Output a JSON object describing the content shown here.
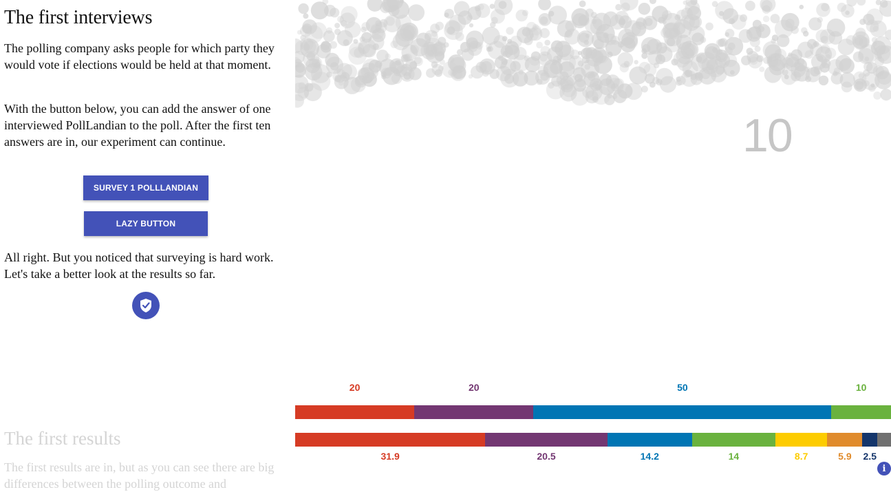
{
  "section1": {
    "title": "The first interviews",
    "para1": "The polling company asks people for which party they would vote if elections would be held at that moment.",
    "para2": "With the button below, you can add the answer of one interviewed PollLandian to the poll. After the first ten answers are in, our experiment can continue.",
    "survey_button": "SURVEY 1 POLLLANDIAN",
    "lazy_button": "LAZY BUTTON",
    "para3": "All right. But you noticed that surveying is hard work. Let's take a better look at the results so far.",
    "continue_icon": "shield-check-icon"
  },
  "section2": {
    "title": "The first results",
    "para1": "The first results are in, but as you can see there are big differences between the polling outcome and"
  },
  "visual": {
    "interview_count": "10",
    "dot_color": "#d0d0d0"
  },
  "chart_data": {
    "type": "bar",
    "orientation": "horizontal-stacked",
    "series": [
      {
        "name": "",
        "values": [
          20,
          20,
          50,
          10
        ],
        "colors": [
          "#d63b24",
          "#733772",
          "#0075b4",
          "#6ab23e"
        ]
      },
      {
        "name": "",
        "values": [
          31.9,
          20.5,
          14.2,
          14,
          8.7,
          5.9,
          2.5,
          2.3
        ],
        "colors": [
          "#d63b24",
          "#733772",
          "#0075b4",
          "#6ab23e",
          "#fdcc00",
          "#e08b2c",
          "#14356b",
          "#707070"
        ]
      }
    ],
    "labels_top": [
      "20",
      "20",
      "50",
      "10"
    ],
    "labels_bottom": [
      "31.9",
      "20.5",
      "14.2",
      "14",
      "8.7",
      "5.9",
      "2.5"
    ],
    "info_icon": "info-icon"
  }
}
